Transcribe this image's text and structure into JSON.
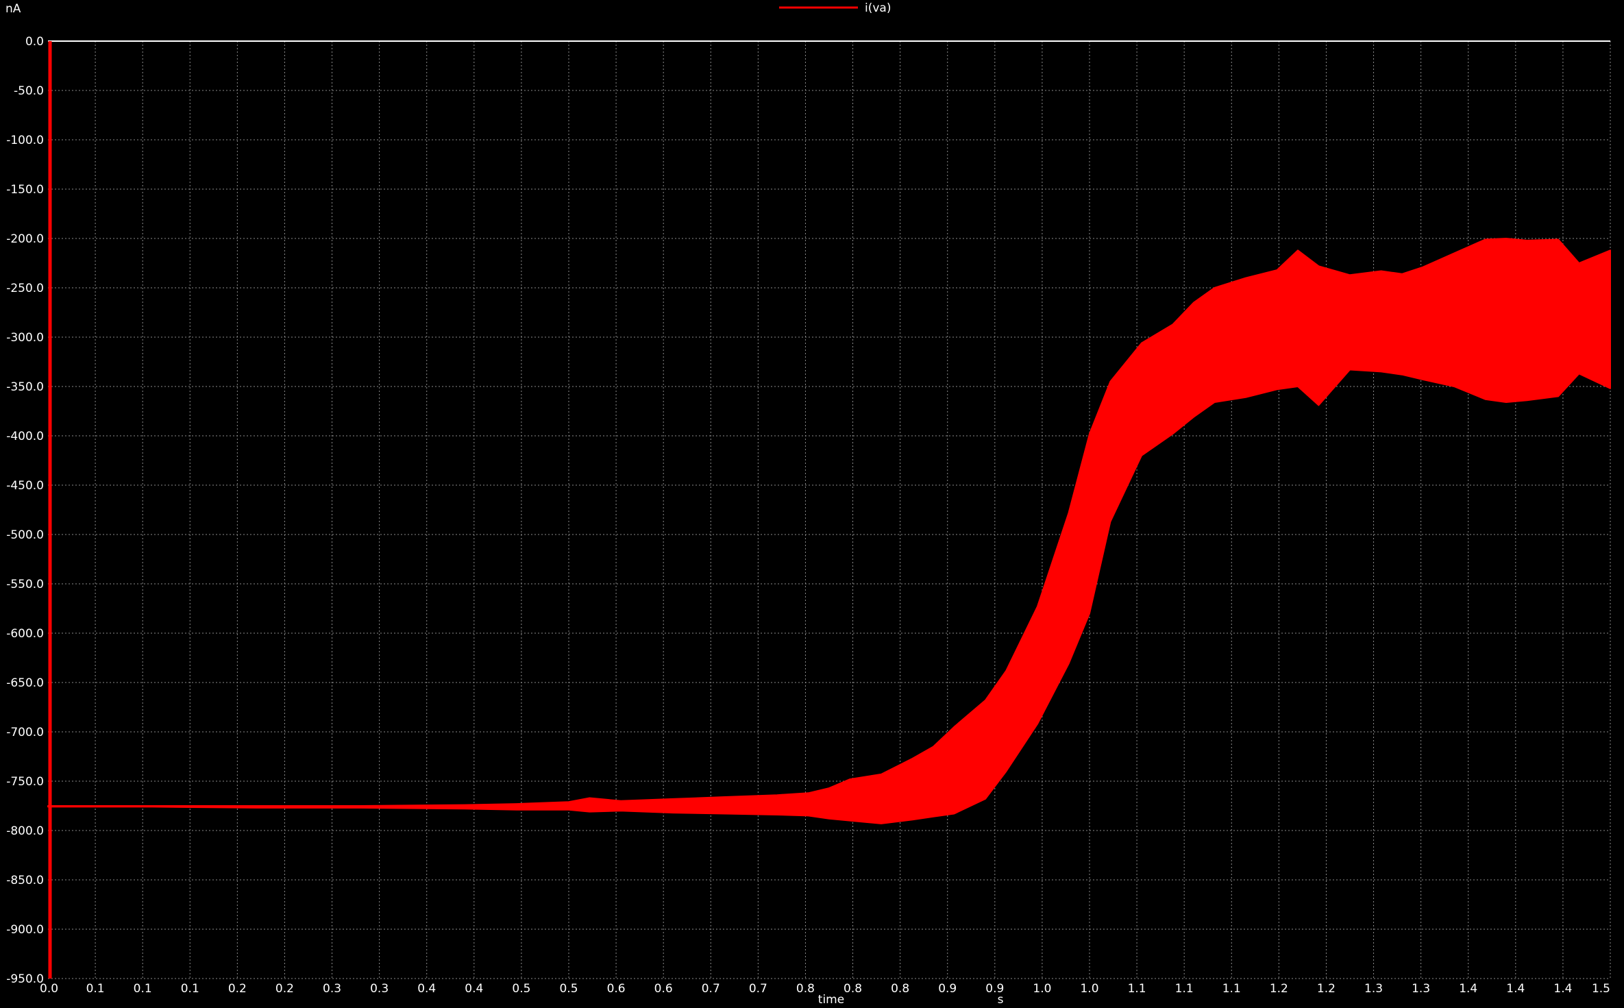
{
  "chart_data": {
    "type": "area",
    "title": "",
    "xlabel": "time",
    "x_unit": "s",
    "y_unit": "nA",
    "xlim": [
      0.0,
      1.5
    ],
    "ylim": [
      -950.0,
      0.0
    ],
    "grid": true,
    "legend_placement": "top-center",
    "x_tick_labels": [
      "0.0",
      "0.1",
      "0.1",
      "0.1",
      "0.2",
      "0.2",
      "0.3",
      "0.3",
      "0.4",
      "0.4",
      "0.5",
      "0.5",
      "0.6",
      "0.6",
      "0.7",
      "0.7",
      "0.8",
      "0.8",
      "0.8",
      "0.9",
      "0.9",
      "1.0",
      "1.0",
      "1.1",
      "1.1",
      "1.1",
      "1.2",
      "1.2",
      "1.3",
      "1.3",
      "1.4",
      "1.4",
      "1.4",
      "1.5"
    ],
    "y_tick_labels": [
      "0.0",
      "-50.0",
      "-100.0",
      "-150.0",
      "-200.0",
      "-250.0",
      "-300.0",
      "-350.0",
      "-400.0",
      "-450.0",
      "-500.0",
      "-550.0",
      "-600.0",
      "-650.0",
      "-700.0",
      "-750.0",
      "-800.0",
      "-850.0",
      "-900.0",
      "-950.0"
    ],
    "series": [
      {
        "name": "i(va)",
        "color": "#ff0000",
        "envelope_x": [
          0.0,
          0.1,
          0.2,
          0.3,
          0.4,
          0.45,
          0.5,
          0.52,
          0.55,
          0.6,
          0.65,
          0.7,
          0.73,
          0.75,
          0.77,
          0.8,
          0.83,
          0.85,
          0.87,
          0.9,
          0.92,
          0.95,
          0.98,
          1.0,
          1.02,
          1.05,
          1.08,
          1.1,
          1.12,
          1.15,
          1.18,
          1.2,
          1.22,
          1.25,
          1.28,
          1.3,
          1.32,
          1.35,
          1.38,
          1.4,
          1.42,
          1.45,
          1.47,
          1.5
        ],
        "envelope_upper": [
          -775,
          -775,
          -775,
          -775,
          -774,
          -773,
          -771,
          -767,
          -770,
          -768,
          -766,
          -764,
          -762,
          -757,
          -748,
          -743,
          -727,
          -715,
          -695,
          -668,
          -638,
          -573,
          -478,
          -398,
          -345,
          -306,
          -287,
          -265,
          -250,
          -240,
          -232,
          -212,
          -228,
          -237,
          -233,
          -236,
          -229,
          -215,
          -201,
          -200,
          -202,
          -201,
          -225,
          -212
        ],
        "envelope_lower": [
          -776,
          -776,
          -777,
          -777,
          -778,
          -779,
          -779,
          -781,
          -780,
          -782,
          -783,
          -784,
          -785,
          -788,
          -790,
          -793,
          -789,
          -786,
          -783,
          -768,
          -740,
          -692,
          -631,
          -580,
          -487,
          -420,
          -398,
          -381,
          -366,
          -361,
          -353,
          -350,
          -369,
          -333,
          -335,
          -338,
          -343,
          -350,
          -363,
          -366,
          -364,
          -360,
          -337,
          -352
        ]
      }
    ]
  }
}
